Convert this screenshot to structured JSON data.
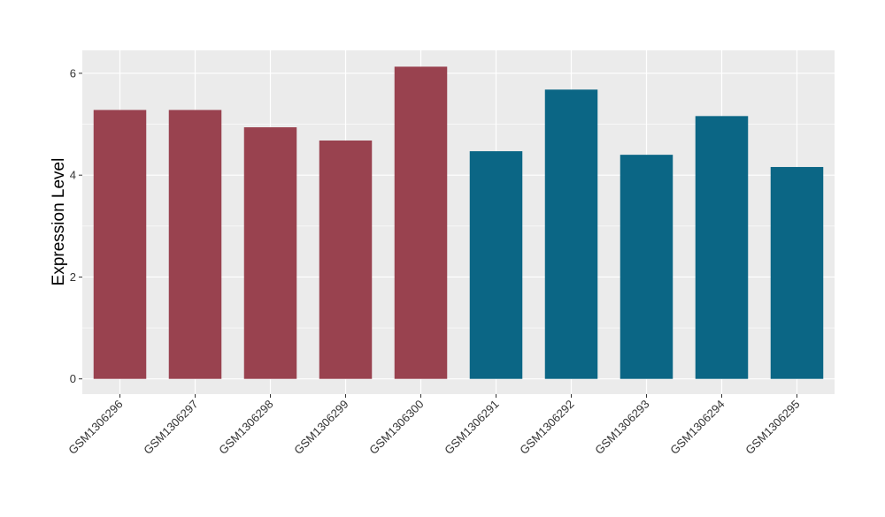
{
  "chart_data": {
    "type": "bar",
    "title": "",
    "xlabel": "",
    "ylabel": "Expression Level",
    "categories": [
      "GSM1306296",
      "GSM1306297",
      "GSM1306298",
      "GSM1306299",
      "GSM1306300",
      "GSM1306291",
      "GSM1306292",
      "GSM1306293",
      "GSM1306294",
      "GSM1306295"
    ],
    "values": [
      5.28,
      5.28,
      4.94,
      4.68,
      6.13,
      4.47,
      5.68,
      4.4,
      5.16,
      4.16
    ],
    "groups": [
      "group1",
      "group1",
      "group1",
      "group1",
      "group1",
      "group2",
      "group2",
      "group2",
      "group2",
      "group2"
    ],
    "group_colors": {
      "group1": "#99424f",
      "group2": "#0b6685"
    },
    "ylim": [
      -0.3,
      6.45
    ],
    "yticks": [
      0,
      2,
      4,
      6
    ],
    "grid": true,
    "legend": "none",
    "panel_background": "#ebebeb",
    "grid_color": "#ffffff"
  }
}
